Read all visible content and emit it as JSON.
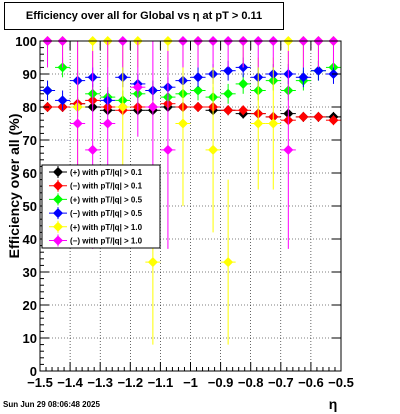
{
  "chart_data": {
    "type": "scatter",
    "title": "Efficiency over all for Global vs η at pT > 0.11",
    "xlabel": "η",
    "ylabel": "Efficiency over all (%)",
    "xlim": [
      -1.5,
      -0.5
    ],
    "ylim": [
      0,
      100
    ],
    "xticks": [
      -1.5,
      -1.4,
      -1.3,
      -1.2,
      -1.1,
      -1,
      -0.9,
      -0.8,
      -0.7,
      -0.6,
      -0.5
    ],
    "xtick_labels": [
      "−1.5",
      "−1.4",
      "−1.3",
      "−1.2",
      "−1.1",
      "−1",
      "−0.9",
      "−0.8",
      "−0.7",
      "−0.6",
      "−0.5"
    ],
    "yticks": [
      0,
      10,
      20,
      30,
      40,
      50,
      60,
      70,
      80,
      90,
      100
    ],
    "grid": true,
    "legend_position": "left-middle",
    "series": [
      {
        "name": "(+) with pT/|q| > 0.1",
        "color": "#000000",
        "marker": "diamond",
        "x": [
          -1.475,
          -1.425,
          -1.375,
          -1.325,
          -1.275,
          -1.225,
          -1.175,
          -1.125,
          -1.075,
          -1.025,
          -0.975,
          -0.925,
          -0.875,
          -0.825,
          -0.775,
          -0.725,
          -0.675,
          -0.625,
          -0.575,
          -0.525
        ],
        "y": [
          80,
          80,
          81,
          80,
          79,
          80,
          79,
          79,
          80,
          80,
          80,
          79,
          79,
          78,
          78,
          77,
          78,
          77,
          77,
          77
        ],
        "err": [
          1.5,
          1.5,
          1.5,
          1.5,
          1.5,
          1.5,
          1.5,
          1.5,
          1.5,
          1.5,
          1.5,
          1.5,
          1.5,
          1.5,
          1.5,
          1.5,
          1.5,
          1.5,
          1.5,
          1.5
        ]
      },
      {
        "name": "(−) with pT/|q| > 0.1",
        "color": "#ff0000",
        "marker": "diamond",
        "x": [
          -1.475,
          -1.425,
          -1.375,
          -1.325,
          -1.275,
          -1.225,
          -1.175,
          -1.125,
          -1.075,
          -1.025,
          -0.975,
          -0.925,
          -0.875,
          -0.825,
          -0.775,
          -0.725,
          -0.675,
          -0.625,
          -0.575,
          -0.525
        ],
        "y": [
          80,
          80,
          81,
          82,
          80,
          79,
          80,
          80,
          81,
          80,
          80,
          80,
          79,
          79,
          78,
          77,
          76,
          77,
          77,
          76
        ],
        "err": [
          1.5,
          1.5,
          1.5,
          1.5,
          1.5,
          1.5,
          1.5,
          1.5,
          1.5,
          1.5,
          1.5,
          1.5,
          1.5,
          1.5,
          1.5,
          1.5,
          1.5,
          1.5,
          1.5,
          1.5
        ]
      },
      {
        "name": "(+) with pT/|q| > 0.5",
        "color": "#00ff00",
        "marker": "diamond",
        "x": [
          -1.475,
          -1.425,
          -1.375,
          -1.325,
          -1.275,
          -1.225,
          -1.175,
          -1.125,
          -1.075,
          -1.025,
          -0.975,
          -0.925,
          -0.875,
          -0.825,
          -0.775,
          -0.725,
          -0.675,
          -0.625,
          -0.575,
          -0.525
        ],
        "y": [
          85,
          92,
          80,
          84,
          83,
          82,
          84,
          85,
          83,
          84,
          85,
          83,
          84,
          87,
          85,
          88,
          85,
          88,
          91,
          92
        ],
        "err": [
          3,
          3,
          3,
          3,
          3,
          3,
          3,
          3,
          3,
          3,
          3,
          3,
          3,
          3,
          3,
          3,
          3,
          3,
          3,
          3
        ]
      },
      {
        "name": "(−) with pT/|q| > 0.5",
        "color": "#0000ff",
        "marker": "diamond",
        "x": [
          -1.475,
          -1.425,
          -1.375,
          -1.325,
          -1.275,
          -1.225,
          -1.175,
          -1.125,
          -1.075,
          -1.025,
          -0.975,
          -0.925,
          -0.875,
          -0.825,
          -0.775,
          -0.725,
          -0.675,
          -0.625,
          -0.575,
          -0.525
        ],
        "y": [
          85,
          82,
          88,
          89,
          82,
          89,
          87,
          85,
          86,
          88,
          89,
          90,
          91,
          92,
          89,
          90,
          90,
          89,
          91,
          90
        ],
        "err": [
          3,
          3,
          3,
          3,
          3,
          3,
          3,
          3,
          3,
          3,
          3,
          3,
          3,
          3,
          3,
          3,
          3,
          3,
          3,
          3
        ]
      },
      {
        "name": "(+) with pT/|q| > 1.0",
        "color": "#ffff00",
        "marker": "diamond",
        "x": [
          -1.475,
          -1.425,
          -1.375,
          -1.325,
          -1.275,
          -1.225,
          -1.175,
          -1.125,
          -1.075,
          -1.025,
          -0.975,
          -0.925,
          -0.875,
          -0.825,
          -0.775,
          -0.725,
          -0.675,
          -0.625,
          -0.575,
          -0.525
        ],
        "y": [
          100,
          100,
          80,
          100,
          100,
          80,
          100,
          33,
          100,
          75,
          100,
          67,
          33,
          100,
          75,
          75,
          100,
          100,
          100,
          100
        ],
        "err": [
          8,
          8,
          20,
          8,
          8,
          20,
          8,
          25,
          8,
          25,
          8,
          25,
          25,
          8,
          20,
          20,
          8,
          8,
          8,
          8
        ]
      },
      {
        "name": "(−) with pT/|q| > 1.0",
        "color": "#ff00ff",
        "marker": "diamond",
        "x": [
          -1.475,
          -1.425,
          -1.375,
          -1.325,
          -1.275,
          -1.225,
          -1.175,
          -1.125,
          -1.075,
          -1.025,
          -0.975,
          -0.925,
          -0.875,
          -0.825,
          -0.775,
          -0.725,
          -0.675,
          -0.625,
          -0.575,
          -0.525
        ],
        "y": [
          100,
          100,
          75,
          67,
          75,
          100,
          86,
          80,
          67,
          100,
          100,
          100,
          100,
          100,
          100,
          100,
          67,
          100,
          100,
          100
        ],
        "err": [
          8,
          8,
          25,
          30,
          25,
          8,
          15,
          20,
          30,
          8,
          8,
          8,
          8,
          8,
          8,
          8,
          30,
          8,
          8,
          8
        ]
      }
    ]
  },
  "footer": {
    "date": "Sun Jun 29 08:06:48 2025"
  }
}
